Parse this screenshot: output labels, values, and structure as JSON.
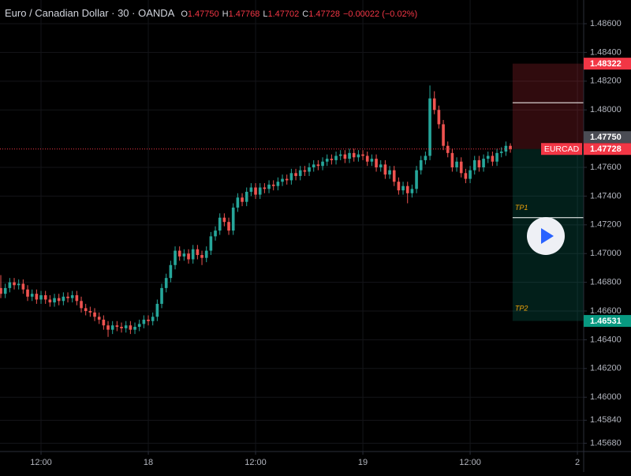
{
  "chart_data": {
    "type": "candlestick",
    "title": "Euro / Canadian Dollar · 30 · OANDA",
    "ohlc": [
      {
        "key": "O",
        "value": "1.47750"
      },
      {
        "key": "H",
        "value": "1.47768"
      },
      {
        "key": "L",
        "value": "1.47702"
      },
      {
        "key": "C",
        "value": "1.47728"
      }
    ],
    "change": "−0.00022 (−0.02%)",
    "up_color": "#26a69a",
    "down_color": "#ef5350",
    "grid": true,
    "xlim": [
      -0.18,
      130.4
    ],
    "xticks": [
      {
        "value": 9,
        "label": "12:00"
      },
      {
        "value": 33,
        "label": "18"
      },
      {
        "value": 57,
        "label": "12:00"
      },
      {
        "value": 81,
        "label": "19"
      },
      {
        "value": 105,
        "label": "12:00"
      },
      {
        "value": 129,
        "label": "2"
      }
    ],
    "ylim": [
      1.45622,
      1.48765
    ],
    "yticks": [
      {
        "value": 1.486,
        "label": "1.48600"
      },
      {
        "value": 1.484,
        "label": "1.48400"
      },
      {
        "value": 1.482,
        "label": "1.48200"
      },
      {
        "value": 1.48,
        "label": "1.48000"
      },
      {
        "value": 1.476,
        "label": "1.47600"
      },
      {
        "value": 1.474,
        "label": "1.47400"
      },
      {
        "value": 1.472,
        "label": "1.47200"
      },
      {
        "value": 1.47,
        "label": "1.47000"
      },
      {
        "value": 1.468,
        "label": "1.46800"
      },
      {
        "value": 1.466,
        "label": "1.46600"
      },
      {
        "value": 1.464,
        "label": "1.46400"
      },
      {
        "value": 1.462,
        "label": "1.46200"
      },
      {
        "value": 1.46,
        "label": "1.46000"
      },
      {
        "value": 1.4584,
        "label": "1.45840"
      },
      {
        "value": 1.4568,
        "label": "1.45680"
      }
    ],
    "x": [
      0,
      1,
      2,
      3,
      4,
      5,
      6,
      7,
      8,
      9,
      10,
      11,
      12,
      13,
      14,
      15,
      16,
      17,
      18,
      19,
      20,
      21,
      22,
      23,
      24,
      25,
      26,
      27,
      28,
      29,
      30,
      31,
      32,
      33,
      34,
      35,
      36,
      37,
      38,
      39,
      40,
      41,
      42,
      43,
      44,
      45,
      46,
      47,
      48,
      49,
      50,
      51,
      52,
      53,
      54,
      55,
      56,
      57,
      58,
      59,
      60,
      61,
      62,
      63,
      64,
      65,
      66,
      67,
      68,
      69,
      70,
      71,
      72,
      73,
      74,
      75,
      76,
      77,
      78,
      79,
      80,
      81,
      82,
      83,
      84,
      85,
      86,
      87,
      88,
      89,
      90,
      91,
      92,
      93,
      94,
      95,
      96,
      97,
      98,
      99,
      100,
      101,
      102,
      103,
      104,
      105,
      106,
      107,
      108,
      109,
      110,
      111,
      112,
      113,
      114
    ],
    "open": [
      1.4676,
      1.4672,
      1.4676,
      1.468,
      1.4678,
      1.4679,
      1.4675,
      1.467,
      1.4672,
      1.4668,
      1.4671,
      1.4668,
      1.4666,
      1.4669,
      1.4667,
      1.467,
      1.4669,
      1.4671,
      1.4667,
      1.4662,
      1.466,
      1.4659,
      1.4656,
      1.4654,
      1.465,
      1.4647,
      1.465,
      1.4649,
      1.4648,
      1.465,
      1.4647,
      1.4649,
      1.4651,
      1.4654,
      1.4653,
      1.4656,
      1.4665,
      1.4676,
      1.4683,
      1.4692,
      1.4702,
      1.4698,
      1.47,
      1.4696,
      1.4703,
      1.4699,
      1.4697,
      1.4702,
      1.4712,
      1.4716,
      1.4725,
      1.4722,
      1.4716,
      1.4732,
      1.4739,
      1.4736,
      1.4743,
      1.4746,
      1.4741,
      1.4746,
      1.4745,
      1.4748,
      1.4747,
      1.475,
      1.4752,
      1.4751,
      1.4756,
      1.4754,
      1.4758,
      1.4757,
      1.476,
      1.4762,
      1.4761,
      1.4764,
      1.4766,
      1.4765,
      1.4768,
      1.4769,
      1.4766,
      1.477,
      1.4767,
      1.4769,
      1.4768,
      1.4764,
      1.4766,
      1.476,
      1.4762,
      1.4755,
      1.4758,
      1.475,
      1.4744,
      1.4747,
      1.4742,
      1.4745,
      1.4758,
      1.4765,
      1.4768,
      1.4808,
      1.48,
      1.479,
      1.4775,
      1.477,
      1.476,
      1.4764,
      1.4756,
      1.4752,
      1.4758,
      1.4765,
      1.476,
      1.4766,
      1.4768,
      1.4764,
      1.477,
      1.4771,
      1.4775
    ],
    "high": [
      1.4685,
      1.4679,
      1.4683,
      1.4683,
      1.4682,
      1.4682,
      1.4678,
      1.4675,
      1.4675,
      1.4674,
      1.4674,
      1.4671,
      1.4672,
      1.4672,
      1.4673,
      1.4673,
      1.4674,
      1.4674,
      1.467,
      1.4665,
      1.4663,
      1.4662,
      1.4659,
      1.4657,
      1.4653,
      1.4653,
      1.4653,
      1.4652,
      1.4653,
      1.4653,
      1.4652,
      1.4654,
      1.4657,
      1.4657,
      1.4659,
      1.4668,
      1.4679,
      1.4686,
      1.4695,
      1.4705,
      1.4705,
      1.4703,
      1.4703,
      1.4706,
      1.4706,
      1.4702,
      1.4705,
      1.4715,
      1.4719,
      1.4728,
      1.4728,
      1.4725,
      1.4735,
      1.4742,
      1.4742,
      1.4746,
      1.4749,
      1.4749,
      1.4749,
      1.4749,
      1.4751,
      1.4751,
      1.4753,
      1.4755,
      1.4755,
      1.4759,
      1.4759,
      1.4761,
      1.4761,
      1.4763,
      1.4765,
      1.4765,
      1.4767,
      1.4769,
      1.4769,
      1.4771,
      1.4772,
      1.4772,
      1.4773,
      1.4773,
      1.4772,
      1.4772,
      1.4771,
      1.4769,
      1.4769,
      1.4765,
      1.4765,
      1.4761,
      1.4761,
      1.4753,
      1.475,
      1.475,
      1.4748,
      1.4761,
      1.4768,
      1.4771,
      1.4817,
      1.4813,
      1.4803,
      1.4793,
      1.4778,
      1.4773,
      1.4767,
      1.4767,
      1.4759,
      1.4761,
      1.4768,
      1.4768,
      1.4769,
      1.4771,
      1.4771,
      1.4773,
      1.4774,
      1.4778,
      1.47768
    ],
    "low": [
      1.4669,
      1.4669,
      1.4673,
      1.4675,
      1.4675,
      1.4672,
      1.4667,
      1.4667,
      1.4665,
      1.4665,
      1.4665,
      1.4663,
      1.4663,
      1.4664,
      1.4664,
      1.4666,
      1.4666,
      1.4664,
      1.4659,
      1.4657,
      1.4656,
      1.4653,
      1.4651,
      1.4647,
      1.4642,
      1.4644,
      1.4646,
      1.4645,
      1.4645,
      1.4644,
      1.4644,
      1.4646,
      1.4648,
      1.465,
      1.465,
      1.4653,
      1.4662,
      1.4673,
      1.468,
      1.4689,
      1.4695,
      1.4695,
      1.4693,
      1.4693,
      1.4696,
      1.4692,
      1.4694,
      1.4699,
      1.4709,
      1.4713,
      1.4719,
      1.4713,
      1.4713,
      1.4729,
      1.4733,
      1.4733,
      1.474,
      1.4738,
      1.4738,
      1.4742,
      1.4742,
      1.4744,
      1.4744,
      1.4747,
      1.4748,
      1.4748,
      1.4751,
      1.4751,
      1.4754,
      1.4754,
      1.4757,
      1.4758,
      1.4758,
      1.4761,
      1.4762,
      1.4762,
      1.4765,
      1.4763,
      1.4763,
      1.4764,
      1.4764,
      1.4765,
      1.4761,
      1.4761,
      1.4757,
      1.4757,
      1.4752,
      1.4752,
      1.4747,
      1.4741,
      1.4741,
      1.4735,
      1.4739,
      1.4742,
      1.4755,
      1.4762,
      1.4765,
      1.4797,
      1.4787,
      1.4772,
      1.4767,
      1.4757,
      1.4757,
      1.4753,
      1.4749,
      1.4749,
      1.4755,
      1.4757,
      1.4757,
      1.4763,
      1.4761,
      1.4761,
      1.4767,
      1.4768,
      1.47702
    ],
    "close": [
      1.4672,
      1.4676,
      1.468,
      1.4678,
      1.4679,
      1.4675,
      1.467,
      1.4672,
      1.4668,
      1.4671,
      1.4668,
      1.4666,
      1.4669,
      1.4667,
      1.467,
      1.4669,
      1.4671,
      1.4667,
      1.4662,
      1.466,
      1.4659,
      1.4656,
      1.4654,
      1.465,
      1.4647,
      1.465,
      1.4649,
      1.4648,
      1.465,
      1.4647,
      1.4649,
      1.4651,
      1.4654,
      1.4653,
      1.4656,
      1.4665,
      1.4676,
      1.4683,
      1.4692,
      1.4702,
      1.4698,
      1.47,
      1.4696,
      1.4703,
      1.4699,
      1.4697,
      1.4702,
      1.4712,
      1.4716,
      1.4725,
      1.4722,
      1.4716,
      1.4732,
      1.4739,
      1.4736,
      1.4743,
      1.4746,
      1.4741,
      1.4746,
      1.4745,
      1.4748,
      1.4747,
      1.475,
      1.4752,
      1.4751,
      1.4756,
      1.4754,
      1.4758,
      1.4757,
      1.476,
      1.4762,
      1.4761,
      1.4764,
      1.4766,
      1.4765,
      1.4768,
      1.4769,
      1.4766,
      1.477,
      1.4767,
      1.4769,
      1.4768,
      1.4764,
      1.4766,
      1.476,
      1.4762,
      1.4755,
      1.4758,
      1.475,
      1.4744,
      1.4747,
      1.4742,
      1.4745,
      1.4758,
      1.4765,
      1.4768,
      1.4808,
      1.48,
      1.479,
      1.4775,
      1.477,
      1.476,
      1.4764,
      1.4756,
      1.4752,
      1.4758,
      1.4765,
      1.476,
      1.4766,
      1.4768,
      1.4764,
      1.477,
      1.4771,
      1.4775,
      1.47728
    ],
    "position": {
      "stop": 1.48322,
      "entry": 1.47728,
      "target": 1.46531,
      "levels": [
        {
          "value": 1.4805,
          "line": true
        },
        {
          "value": 1.4725,
          "label": "TP1",
          "line": true
        },
        {
          "value": 1.4655,
          "label": "TP2",
          "line": false
        }
      ]
    },
    "price_labels": [
      {
        "value": 1.48322,
        "label": "1.48322",
        "color": "#f23645"
      },
      {
        "value": 1.47728,
        "label": "1.47728",
        "color": "#f23645",
        "tag": "EURCAD",
        "dotted": true
      },
      {
        "value": 1.4775,
        "label": "1.47750",
        "color": "#4a4c54"
      },
      {
        "value": 1.46531,
        "label": "1.46531",
        "color": "#089981"
      }
    ]
  }
}
